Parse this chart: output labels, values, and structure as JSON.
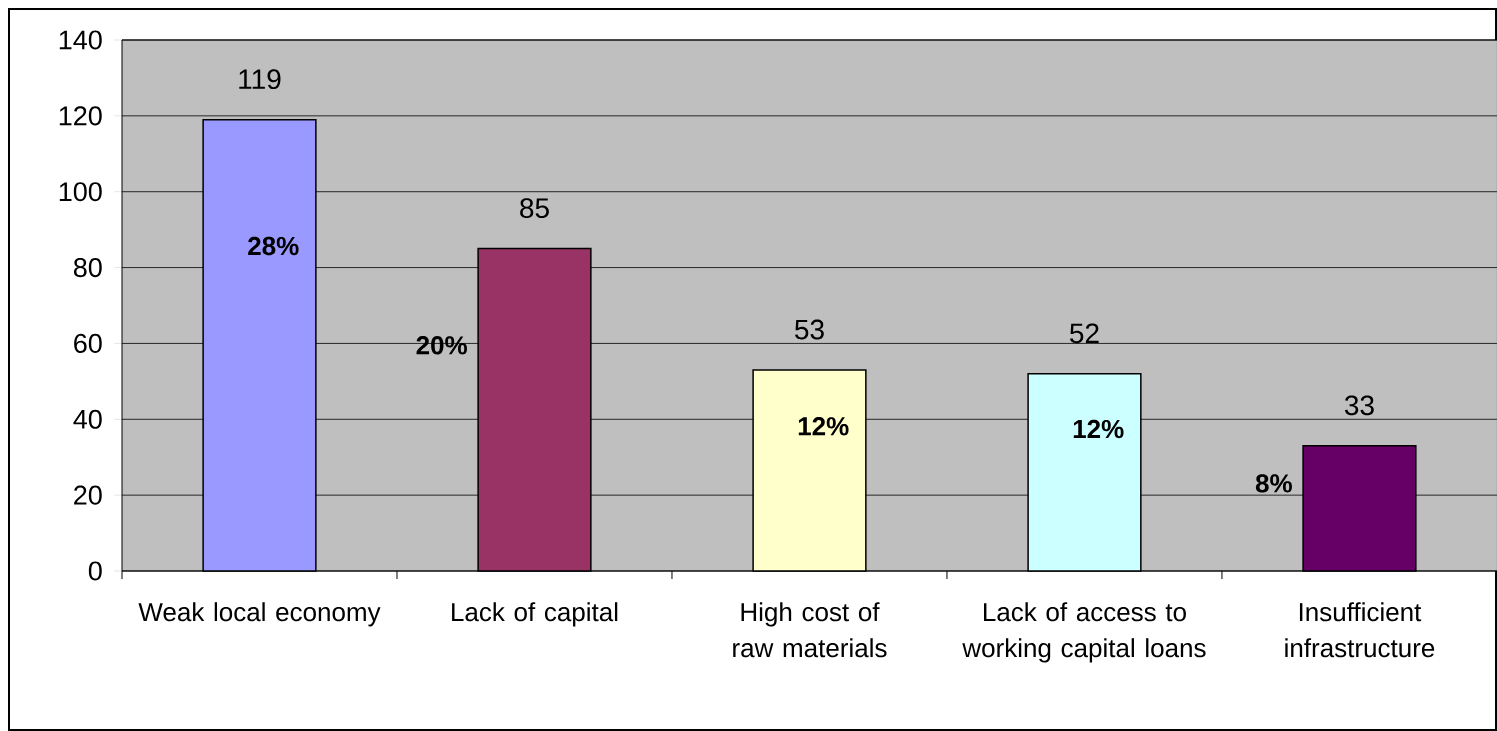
{
  "chart_data": {
    "type": "bar",
    "categories": [
      "Weak local economy",
      "Lack of capital",
      "High cost of raw materials",
      "Lack of access to working capital loans",
      "Insufficient infrastructure"
    ],
    "values": [
      119,
      85,
      53,
      52,
      33
    ],
    "colors": [
      "#9999ff",
      "#993366",
      "#ffffcc",
      "#ccffff",
      "#660066"
    ],
    "ylim": [
      0,
      140
    ],
    "yticks": [
      0,
      20,
      40,
      60,
      80,
      100,
      120,
      140
    ],
    "grid": "y",
    "data_labels": true,
    "annotations": [
      "28%",
      "20%",
      "12%",
      "12%",
      "8%"
    ]
  }
}
